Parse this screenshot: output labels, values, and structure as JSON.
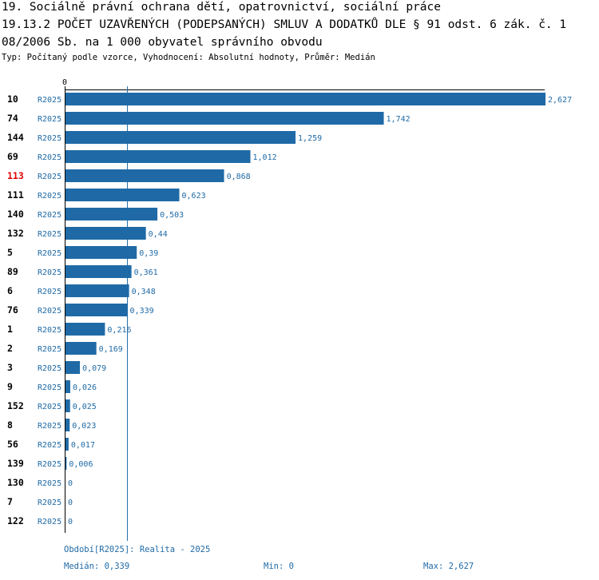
{
  "header": {
    "title_line1": "19. Sociálně právní ochrana dětí, opatrovnictví, sociální práce",
    "title_line2": "19.13.2 POČET UZAVŘENÝCH (PODEPSANÝCH) SMLUV A DODATKŮ DLE § 91 odst. 6 zák. č. 1",
    "title_line3": "08/2006 Sb. na 1 000 obyvatel správního obvodu",
    "subtitle": "Typ: Počítaný podle vzorce, Vyhodnocení: Absolutní hodnoty, Průměr: Medián"
  },
  "chart_data": {
    "type": "bar",
    "orientation": "horizontal",
    "axis_zero_label": "0",
    "series_label": "R2025",
    "highlight_color": "#e00000",
    "bar_color": "#1f6aa6",
    "median": 0.339,
    "xlim": [
      0,
      2.627
    ],
    "categories": [
      "10",
      "74",
      "144",
      "69",
      "113",
      "111",
      "140",
      "132",
      "5",
      "89",
      "6",
      "76",
      "1",
      "2",
      "3",
      "9",
      "152",
      "8",
      "56",
      "139",
      "130",
      "7",
      "122"
    ],
    "values": [
      2.627,
      1.742,
      1.259,
      1.012,
      0.868,
      0.623,
      0.503,
      0.44,
      0.39,
      0.361,
      0.348,
      0.339,
      0.216,
      0.169,
      0.079,
      0.026,
      0.025,
      0.023,
      0.017,
      0.006,
      0,
      0,
      0
    ],
    "value_labels": [
      "2,627",
      "1,742",
      "1,259",
      "1,012",
      "0,868",
      "0,623",
      "0,503",
      "0,44",
      "0,39",
      "0,361",
      "0,348",
      "0,339",
      "0,216",
      "0,169",
      "0,079",
      "0,026",
      "0,025",
      "0,023",
      "0,017",
      "0,006",
      "0",
      "0",
      "0"
    ],
    "highlighted_category": "113"
  },
  "footer": {
    "period": "Období[R2025]: Realita - 2025",
    "median": "Medián: 0,339",
    "min": "Min: 0",
    "max": "Max: 2,627"
  }
}
